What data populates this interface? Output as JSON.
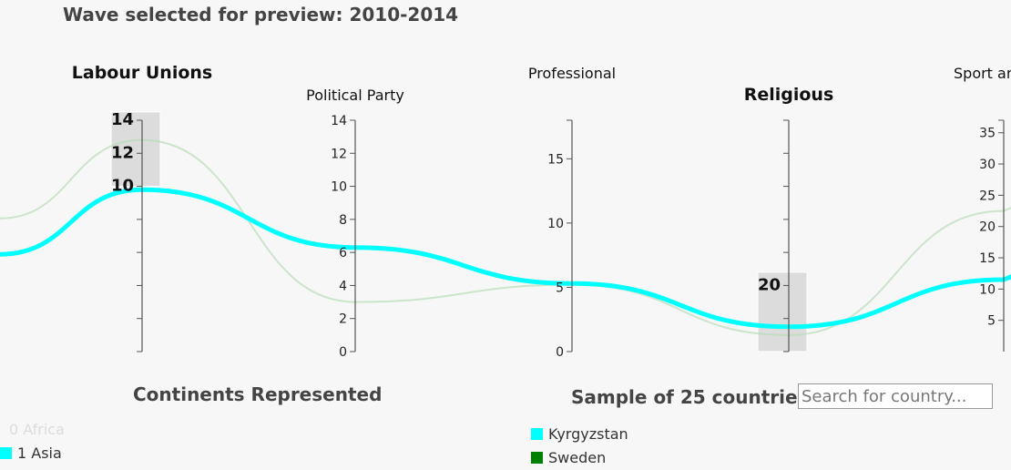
{
  "header": {
    "wave_label": "Wave selected for preview: 2010-2014"
  },
  "chart_data": {
    "type": "parallel-coordinates",
    "axes": [
      {
        "id": "labour",
        "label": "Labour Unions",
        "highlighted": true,
        "range": [
          0,
          14
        ],
        "ticks": [
          10,
          12,
          14
        ],
        "tick_labels": [
          "10",
          "12",
          "14"
        ],
        "brushed": [
          10,
          14.5
        ]
      },
      {
        "id": "political",
        "label": "Political Party",
        "highlighted": false,
        "range": [
          0,
          14
        ],
        "ticks": [
          0,
          2,
          4,
          6,
          8,
          10,
          12,
          14
        ],
        "tick_labels": [
          "0",
          "2",
          "4",
          "6",
          "8",
          "10",
          "12",
          "14"
        ]
      },
      {
        "id": "professional",
        "label": "Professional",
        "highlighted": false,
        "range": [
          0,
          18
        ],
        "ticks": [
          0,
          5,
          10,
          15
        ],
        "tick_labels": [
          "0",
          "5",
          "10",
          "15"
        ]
      },
      {
        "id": "religious",
        "label": "Religious",
        "highlighted": true,
        "range": [
          0,
          70
        ],
        "ticks": [
          20
        ],
        "tick_labels": [
          "20"
        ],
        "brushed": [
          0,
          24
        ]
      },
      {
        "id": "sport",
        "label": "Sport ar",
        "highlighted": false,
        "range": [
          0,
          37
        ],
        "ticks": [
          5,
          10,
          15,
          20,
          25,
          30,
          35
        ],
        "tick_labels": [
          "5",
          "10",
          "15",
          "20",
          "25",
          "30",
          "35"
        ]
      }
    ],
    "series": [
      {
        "name": "Kyrgyzstan",
        "color": "#00ffff",
        "values": [
          9.8,
          6.3,
          5.3,
          7.5,
          11.5
        ]
      },
      {
        "name": "Sweden",
        "color": "#b9dcb9",
        "values": [
          12.8,
          3.0,
          5.2,
          5.0,
          22.5
        ]
      }
    ]
  },
  "continents": {
    "title": "Continents Represented",
    "items": [
      {
        "label": "0 Africa",
        "color": "",
        "faded": true
      },
      {
        "label": "1 Asia",
        "color": "#00ffff",
        "faded": false
      }
    ]
  },
  "countries": {
    "title": "Sample of 25 countries",
    "search_placeholder": "Search for country...",
    "items": [
      {
        "label": "Kyrgyzstan",
        "color": "#00ffff"
      },
      {
        "label": "Sweden",
        "color": "#008000"
      }
    ]
  }
}
